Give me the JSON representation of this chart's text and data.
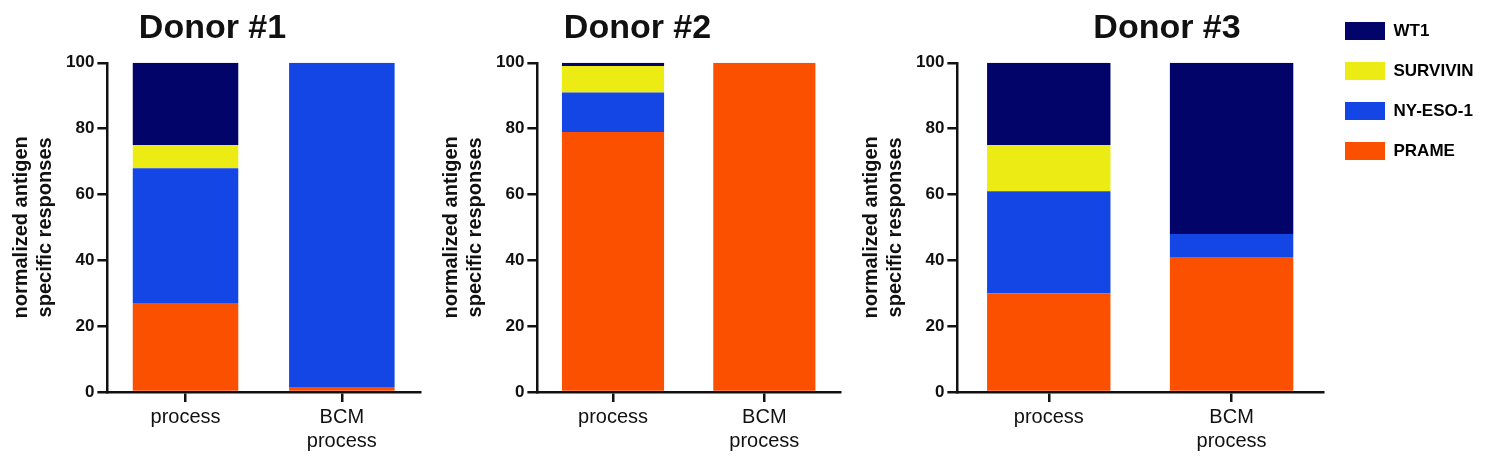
{
  "chart_data": [
    {
      "type": "bar",
      "title": "Donor #1",
      "ylabel": "normalized antigen specific responses",
      "categories": [
        "process",
        "BCM process"
      ],
      "stacked": true,
      "ylim": [
        0,
        100
      ],
      "yticks": [
        0,
        20,
        40,
        60,
        80,
        100
      ],
      "legend": false,
      "series": [
        {
          "color": "#fa5000",
          "values": [
            27,
            1.5
          ]
        },
        {
          "color": "#1446e6",
          "values": [
            41,
            98.5
          ]
        },
        {
          "color": "#ecec14",
          "values": [
            7,
            0
          ]
        },
        {
          "color": "#03046a",
          "values": [
            25,
            0
          ]
        }
      ]
    },
    {
      "type": "bar",
      "title": "Donor #2",
      "ylabel": "normalized antigen specific responses",
      "categories": [
        "process",
        "BCM process"
      ],
      "stacked": true,
      "ylim": [
        0,
        100
      ],
      "yticks": [
        0,
        20,
        40,
        60,
        80,
        100
      ],
      "legend": false,
      "series": [
        {
          "color": "#fa5000",
          "values": [
            79,
            100
          ]
        },
        {
          "color": "#1446e6",
          "values": [
            12,
            0
          ]
        },
        {
          "color": "#ecec14",
          "values": [
            8,
            0
          ]
        },
        {
          "color": "#03046a",
          "values": [
            1,
            0
          ]
        }
      ]
    },
    {
      "type": "bar",
      "title": "Donor #3",
      "ylabel": "normalized antigen specific responses",
      "categories": [
        "process",
        "BCM process"
      ],
      "stacked": true,
      "ylim": [
        0,
        100
      ],
      "yticks": [
        0,
        20,
        40,
        60,
        80,
        100
      ],
      "legend": "right",
      "series": [
        {
          "name": "PRAME",
          "color": "#fa5000",
          "values": [
            30,
            41
          ]
        },
        {
          "name": "NY-ESO-1",
          "color": "#1446e6",
          "values": [
            31,
            7
          ]
        },
        {
          "name": "SURVIVIN",
          "color": "#ecec14",
          "values": [
            14,
            0
          ]
        },
        {
          "name": "WT1",
          "color": "#03046a",
          "values": [
            25,
            52
          ]
        }
      ]
    }
  ]
}
